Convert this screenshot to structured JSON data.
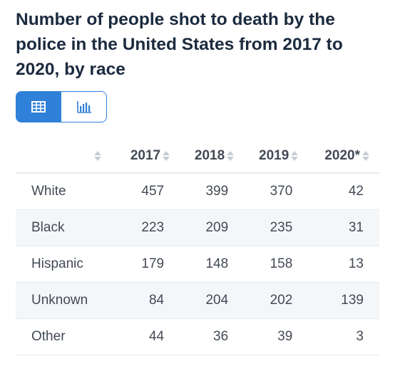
{
  "title": "Number of people shot to death by the police in the United States from 2017 to 2020, by race",
  "toggle": {
    "table_icon": "table-icon",
    "chart_icon": "bar-chart-icon",
    "active": "table"
  },
  "colors": {
    "accent": "#2f80d8",
    "title": "#1b2a3e",
    "text": "#434a54",
    "stripe": "#f4f6f9"
  },
  "chart_data": {
    "type": "table",
    "columns": [
      "",
      "2017",
      "2018",
      "2019",
      "2020*"
    ],
    "rows": [
      {
        "category": "White",
        "values": [
          "457",
          "399",
          "370",
          "42"
        ]
      },
      {
        "category": "Black",
        "values": [
          "223",
          "209",
          "235",
          "31"
        ]
      },
      {
        "category": "Hispanic",
        "values": [
          "179",
          "148",
          "158",
          "13"
        ]
      },
      {
        "category": "Unknown",
        "values": [
          "84",
          "204",
          "202",
          "139"
        ]
      },
      {
        "category": "Other",
        "values": [
          "44",
          "36",
          "39",
          "3"
        ]
      }
    ]
  }
}
